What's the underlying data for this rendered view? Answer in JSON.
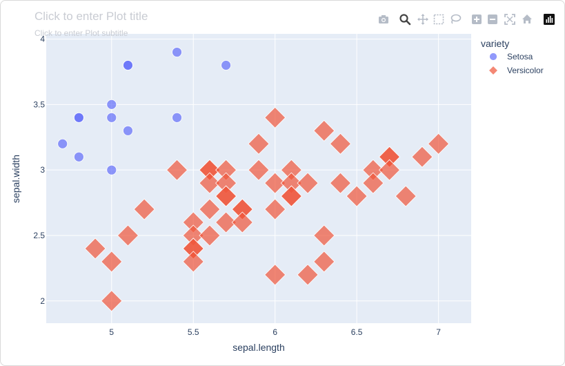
{
  "plot": {
    "title_placeholder": "Click to enter Plot title",
    "subtitle_placeholder": "Click to enter Plot subtitle"
  },
  "modebar": {
    "icons": [
      "camera-icon",
      "zoom-icon",
      "pan-icon",
      "box-select-icon",
      "lasso-icon",
      "zoom-in-icon",
      "zoom-out-icon",
      "autoscale-icon",
      "reset-axes-icon",
      "plotly-logo-icon"
    ]
  },
  "chart_data": {
    "type": "scatter",
    "xlabel": "sepal.length",
    "ylabel": "sepal.width",
    "xlim": [
      4.6,
      7.2
    ],
    "ylim": [
      1.83,
      4.04
    ],
    "xticks": [
      5,
      5.5,
      6,
      6.5,
      7
    ],
    "yticks": [
      2,
      2.5,
      3,
      3.5,
      4
    ],
    "grid": true,
    "legend": {
      "title": "variety",
      "placement": "top-right"
    },
    "series": [
      {
        "name": "Setosa",
        "marker": "circle",
        "color": "#636efa",
        "points": [
          [
            4.7,
            3.2
          ],
          [
            4.8,
            3.1
          ],
          [
            4.8,
            3.4
          ],
          [
            4.8,
            3.4
          ],
          [
            5.0,
            3.5
          ],
          [
            5.0,
            3.4
          ],
          [
            5.0,
            3.0
          ],
          [
            5.1,
            3.8
          ],
          [
            5.1,
            3.8
          ],
          [
            5.1,
            3.3
          ],
          [
            5.4,
            3.9
          ],
          [
            5.4,
            3.4
          ],
          [
            5.7,
            3.8
          ]
        ]
      },
      {
        "name": "Versicolor",
        "marker": "diamond",
        "color": "#ef553b",
        "points": [
          [
            4.9,
            2.4
          ],
          [
            5.0,
            2.3
          ],
          [
            5.0,
            2.0
          ],
          [
            5.1,
            2.5
          ],
          [
            5.2,
            2.7
          ],
          [
            5.4,
            3.0
          ],
          [
            5.5,
            2.6
          ],
          [
            5.5,
            2.5
          ],
          [
            5.5,
            2.4
          ],
          [
            5.5,
            2.4
          ],
          [
            5.5,
            2.3
          ],
          [
            5.6,
            3.0
          ],
          [
            5.6,
            3.0
          ],
          [
            5.6,
            2.9
          ],
          [
            5.6,
            2.7
          ],
          [
            5.6,
            2.5
          ],
          [
            5.7,
            3.0
          ],
          [
            5.7,
            2.9
          ],
          [
            5.7,
            2.8
          ],
          [
            5.7,
            2.8
          ],
          [
            5.7,
            2.6
          ],
          [
            5.8,
            2.7
          ],
          [
            5.8,
            2.7
          ],
          [
            5.8,
            2.6
          ],
          [
            5.9,
            3.2
          ],
          [
            5.9,
            3.0
          ],
          [
            6.0,
            3.4
          ],
          [
            6.0,
            2.9
          ],
          [
            6.0,
            2.7
          ],
          [
            6.0,
            2.2
          ],
          [
            6.1,
            3.0
          ],
          [
            6.1,
            2.9
          ],
          [
            6.1,
            2.8
          ],
          [
            6.1,
            2.8
          ],
          [
            6.2,
            2.9
          ],
          [
            6.2,
            2.2
          ],
          [
            6.3,
            3.3
          ],
          [
            6.3,
            2.5
          ],
          [
            6.3,
            2.3
          ],
          [
            6.4,
            3.2
          ],
          [
            6.4,
            2.9
          ],
          [
            6.5,
            2.8
          ],
          [
            6.6,
            3.0
          ],
          [
            6.6,
            2.9
          ],
          [
            6.7,
            3.1
          ],
          [
            6.7,
            3.1
          ],
          [
            6.7,
            3.0
          ],
          [
            6.8,
            2.8
          ],
          [
            6.9,
            3.1
          ],
          [
            7.0,
            3.2
          ]
        ]
      }
    ]
  }
}
